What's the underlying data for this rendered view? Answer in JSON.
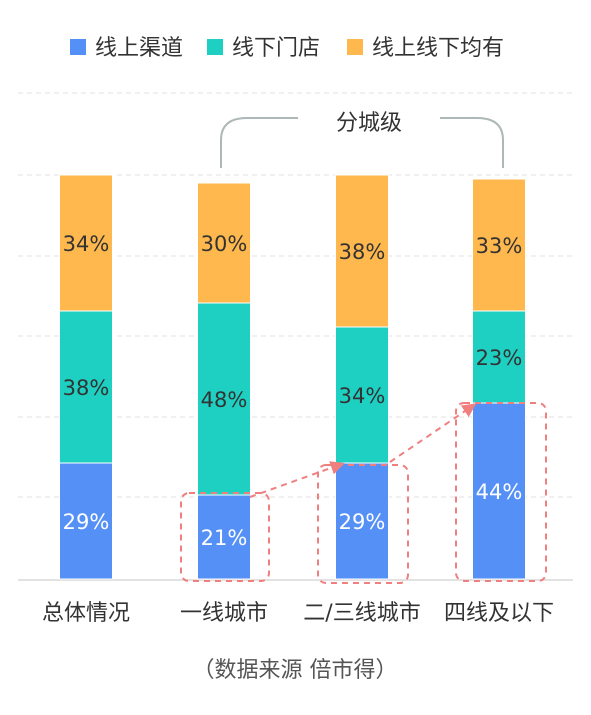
{
  "chart_data": {
    "type": "bar",
    "stacked": true,
    "categories": [
      "总体情况",
      "一线城市",
      "二/三线城市",
      "四线及以下"
    ],
    "series": [
      {
        "name": "线上渠道",
        "values": [
          29,
          21,
          29,
          44
        ]
      },
      {
        "name": "线下门店",
        "values": [
          38,
          48,
          34,
          23
        ]
      },
      {
        "name": "线上线下均有",
        "values": [
          34,
          30,
          38,
          33
        ]
      }
    ],
    "value_labels": [
      [
        "29%",
        "21%",
        "29%",
        "44%"
      ],
      [
        "38%",
        "48%",
        "34%",
        "23%"
      ],
      [
        "34%",
        "30%",
        "38%",
        "33%"
      ]
    ],
    "ylim": [
      0,
      101
    ],
    "grid": true,
    "legend_position": "top",
    "group_label": "分城级",
    "source_note": "（数据来源  倍市得）",
    "colors": {
      "series": [
        "#5590F7",
        "#1ED0C2",
        "#FFB84D"
      ],
      "grid": "#E6E6E6",
      "highlight": "#F08080",
      "bracket": "#AEB8B8",
      "text": "#333333",
      "label_dark": "#333333",
      "label_light": "#FFFFFF"
    }
  }
}
